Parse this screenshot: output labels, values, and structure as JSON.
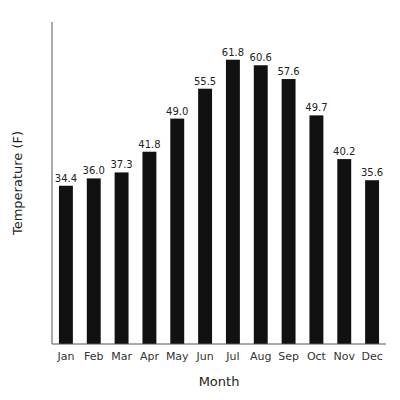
{
  "chart_data": {
    "type": "bar",
    "xlabel": "Month",
    "ylabel": "Temperature (F)",
    "categories": [
      "Jan",
      "Feb",
      "Mar",
      "Apr",
      "May",
      "Jun",
      "Jul",
      "Aug",
      "Sep",
      "Oct",
      "Nov",
      "Dec"
    ],
    "values": [
      34.4,
      36.0,
      37.3,
      41.8,
      49.0,
      55.5,
      61.8,
      60.6,
      57.6,
      49.7,
      40.2,
      35.6
    ],
    "value_labels": [
      "34.4",
      "36.0",
      "37.3",
      "41.8",
      "49.0",
      "55.5",
      "61.8",
      "60.6",
      "57.6",
      "49.7",
      "40.2",
      "35.6"
    ],
    "color": "#111111",
    "ylim": [
      0,
      70
    ],
    "data_labels": true,
    "tick_labels": "x",
    "grid": false
  }
}
